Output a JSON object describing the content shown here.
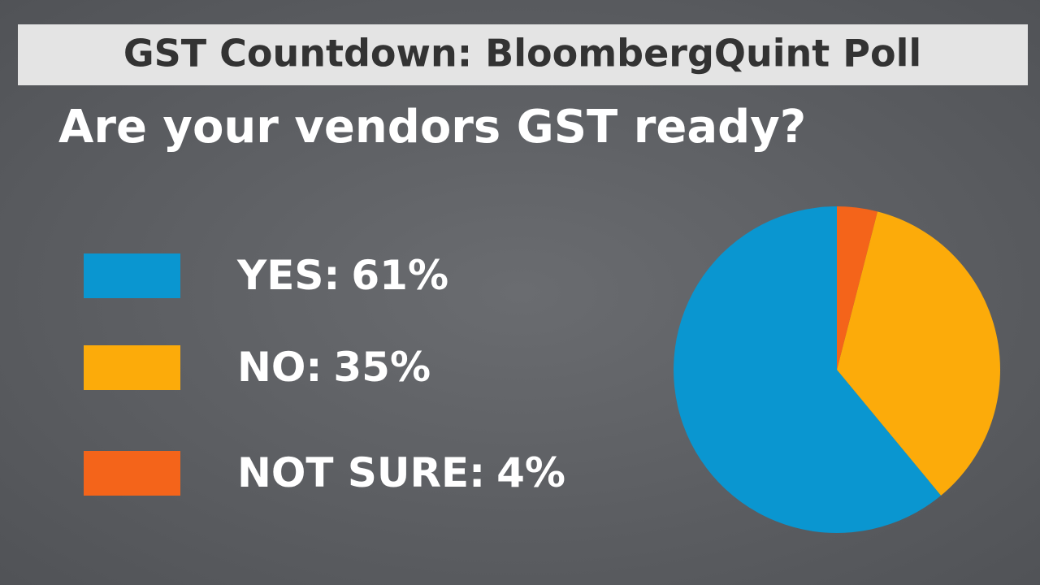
{
  "chart_data": {
    "type": "pie",
    "title": "GST Countdown: BloombergQuint Poll",
    "subtitle": "Are your vendors GST ready?",
    "categories": [
      "YES:",
      "NO:",
      "NOT SURE:"
    ],
    "values": [
      61,
      35,
      4
    ],
    "value_labels": [
      "61%",
      "35%",
      "4%"
    ],
    "colors": [
      "#0a96d0",
      "#fcab0a",
      "#f4641a"
    ]
  }
}
